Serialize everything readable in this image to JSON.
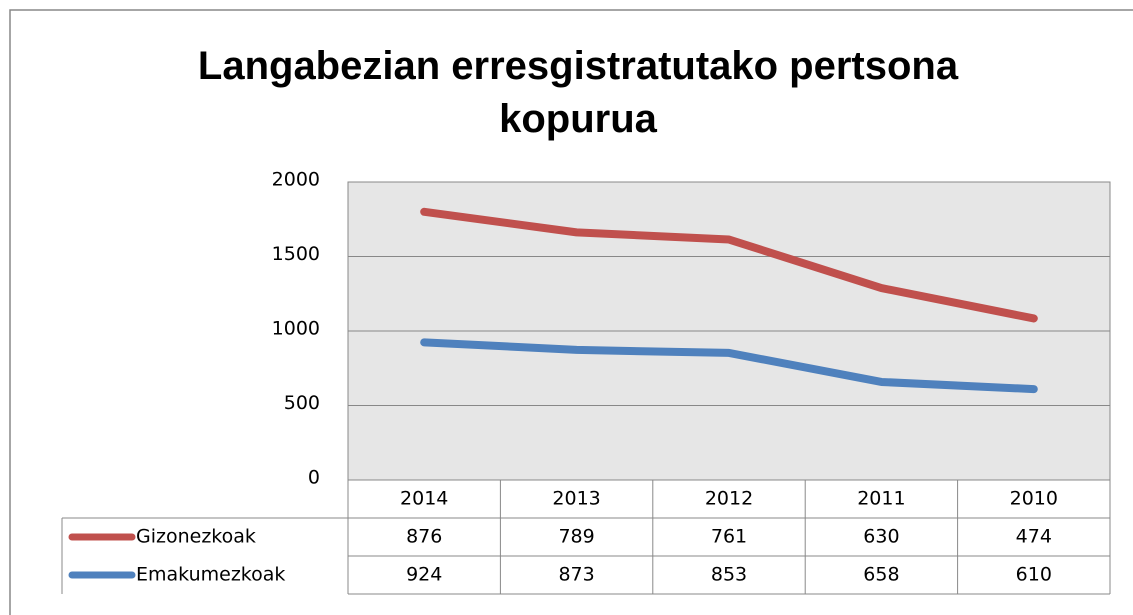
{
  "chart_data": {
    "type": "line",
    "stacked": true,
    "title": "Langabezian erresgistratutako pertsona kopurua",
    "categories": [
      "2014",
      "2013",
      "2012",
      "2011",
      "2010"
    ],
    "series": [
      {
        "name": "Gizonezkoak",
        "color": "#c0504d",
        "values": [
          876,
          789,
          761,
          630,
          474
        ]
      },
      {
        "name": "Emakumezkoak",
        "color": "#4f81bd",
        "values": [
          924,
          873,
          853,
          658,
          610
        ]
      }
    ],
    "ylim": [
      0,
      2000
    ],
    "yticks": [
      0,
      500,
      1000,
      1500,
      2000
    ],
    "grid": true,
    "data_table": true
  }
}
